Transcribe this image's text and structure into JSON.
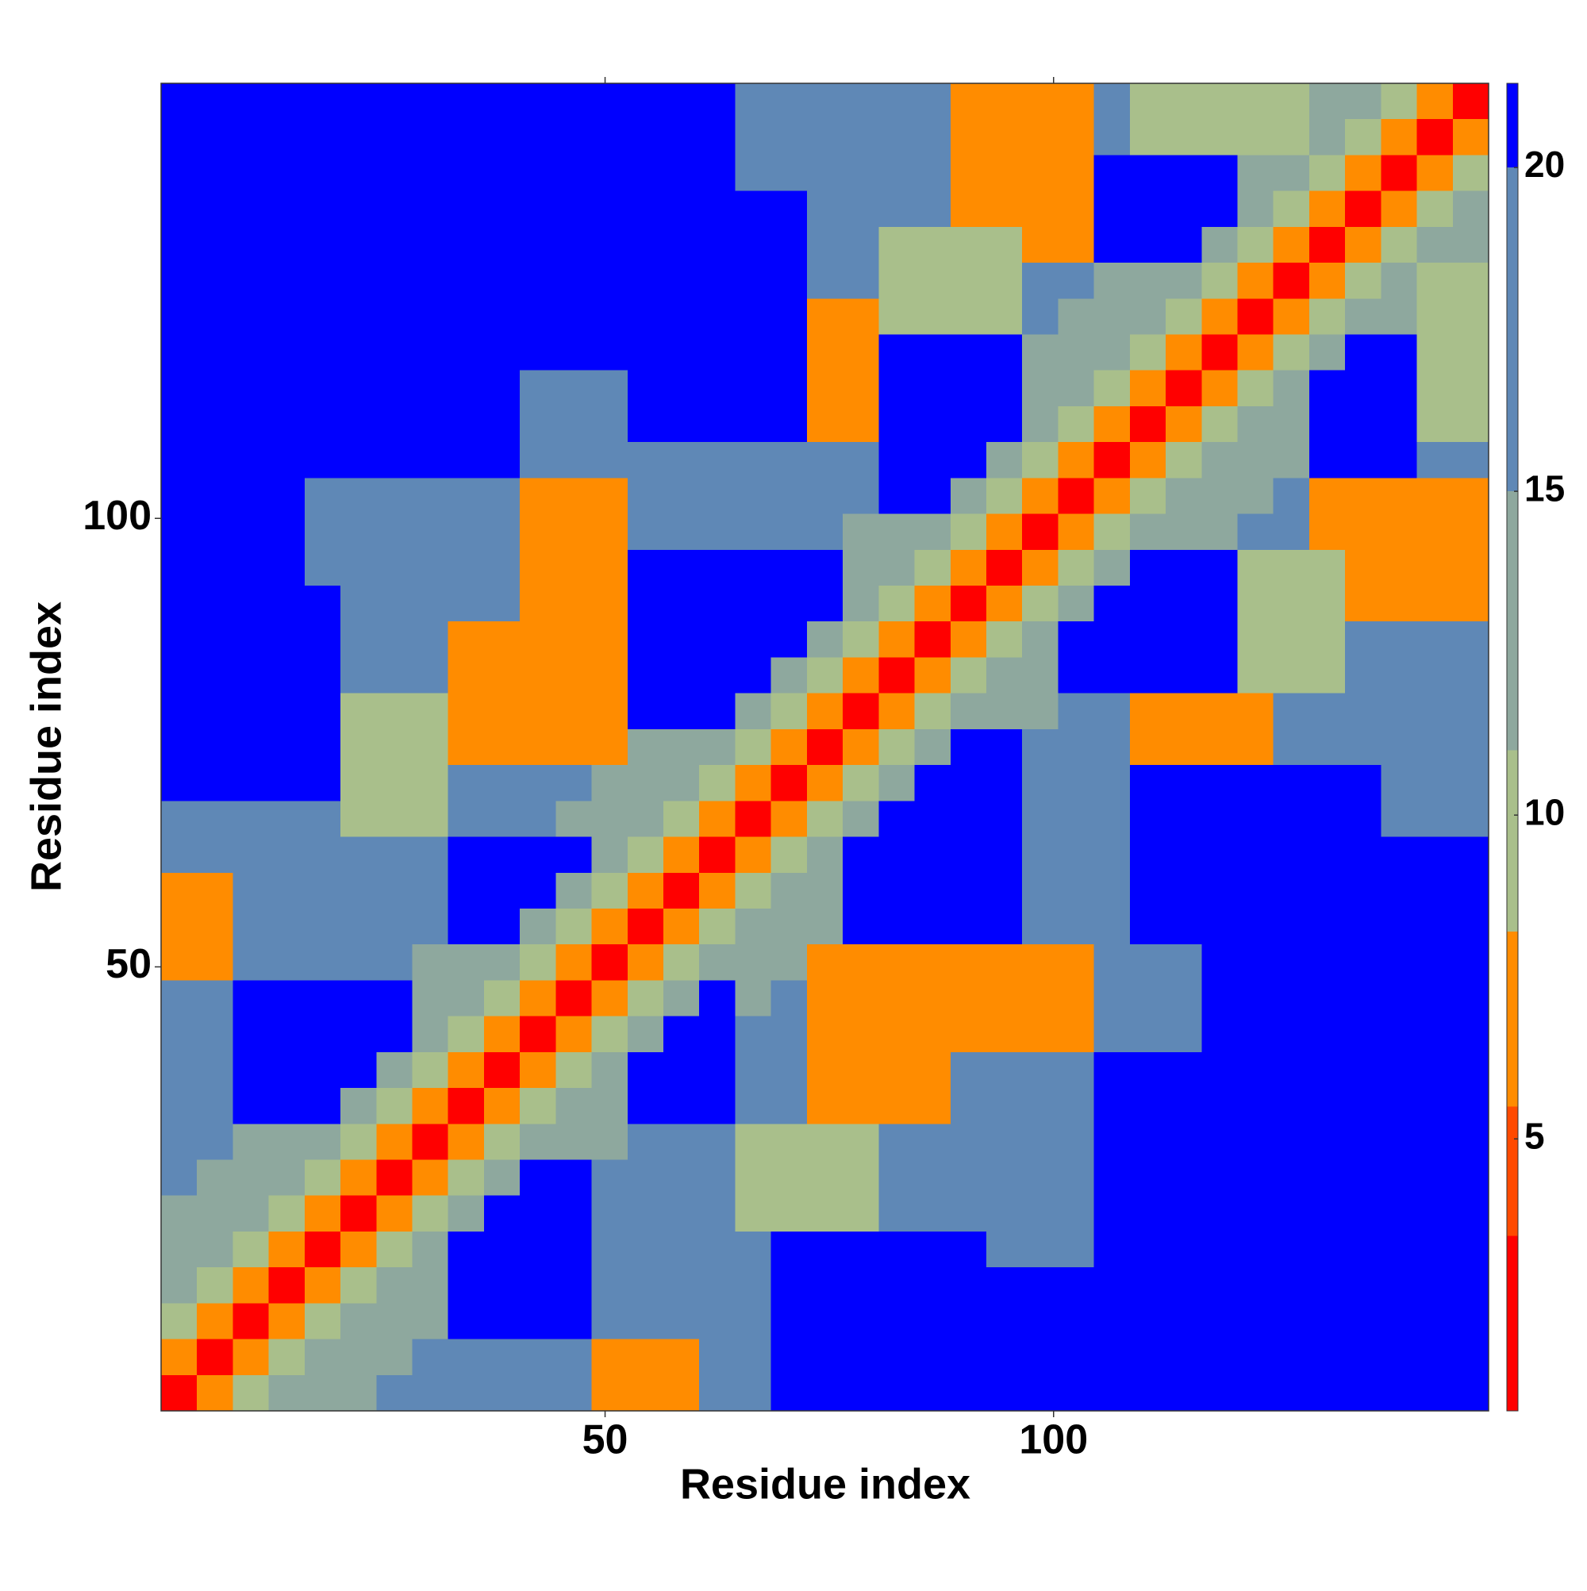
{
  "chart_data": {
    "type": "heatmap",
    "xlabel": "Residue index",
    "ylabel": "Residue index",
    "xbins": [
      0.5,
      4.5,
      8.5,
      12.5,
      16.5,
      20.5,
      24.5,
      28.5,
      32.5,
      36.5,
      40.5,
      44.5,
      48.5,
      52.5,
      56.5,
      60.5,
      64.5,
      68.5,
      72.5,
      76.5,
      80.5,
      84.5,
      88.5,
      92.5,
      96.5,
      100.5,
      104.5,
      108.5,
      112.5,
      116.5,
      120.5,
      124.5,
      128.5,
      132.5,
      136.5,
      140.5,
      144.5,
      148.5
    ],
    "ybins": [
      0.5,
      4.5,
      8.5,
      12.5,
      16.5,
      20.5,
      24.5,
      28.5,
      32.5,
      36.5,
      40.5,
      44.5,
      48.5,
      52.5,
      56.5,
      60.5,
      64.5,
      68.5,
      72.5,
      76.5,
      80.5,
      84.5,
      88.5,
      92.5,
      96.5,
      100.5,
      104.5,
      108.5,
      112.5,
      116.5,
      120.5,
      124.5,
      128.5,
      132.5,
      136.5,
      140.5,
      144.5,
      148.5
    ],
    "xlim": [
      0.5,
      148.5
    ],
    "ylim": [
      0.5,
      148.5
    ],
    "xticks": [
      50,
      100
    ],
    "yticks": [
      50,
      100
    ],
    "values": [
      [
        3,
        7,
        10,
        13,
        14,
        14,
        17,
        17,
        17,
        17,
        17,
        17,
        7,
        7,
        7,
        17,
        17,
        21,
        21,
        21,
        21,
        21,
        21,
        21,
        21,
        21,
        21,
        21,
        21,
        21,
        21,
        21,
        21,
        21,
        21,
        21,
        21
      ],
      [
        7,
        3,
        7,
        10,
        13,
        14,
        14,
        17,
        17,
        17,
        17,
        17,
        7,
        7,
        7,
        17,
        17,
        21,
        21,
        21,
        21,
        21,
        21,
        21,
        21,
        21,
        21,
        21,
        21,
        21,
        21,
        21,
        21,
        21,
        21,
        21,
        21
      ],
      [
        10,
        7,
        3,
        7,
        10,
        13,
        14,
        14,
        21,
        21,
        21,
        21,
        17,
        17,
        17,
        17,
        17,
        21,
        21,
        21,
        21,
        21,
        21,
        21,
        21,
        21,
        21,
        21,
        21,
        21,
        21,
        21,
        21,
        21,
        21,
        21,
        21
      ],
      [
        13,
        10,
        7,
        3,
        7,
        10,
        13,
        14,
        21,
        21,
        21,
        21,
        17,
        17,
        17,
        17,
        17,
        21,
        21,
        21,
        21,
        21,
        21,
        21,
        21,
        21,
        21,
        21,
        21,
        21,
        21,
        21,
        21,
        21,
        21,
        21,
        21
      ],
      [
        14,
        13,
        10,
        7,
        3,
        7,
        10,
        13,
        21,
        21,
        21,
        21,
        17,
        17,
        17,
        17,
        17,
        21,
        21,
        21,
        21,
        21,
        21,
        17,
        17,
        17,
        21,
        21,
        21,
        21,
        21,
        21,
        21,
        21,
        21,
        21,
        21
      ],
      [
        14,
        14,
        13,
        10,
        7,
        3,
        7,
        10,
        13,
        21,
        21,
        21,
        17,
        17,
        17,
        17,
        9,
        9,
        9,
        9,
        17,
        17,
        17,
        17,
        17,
        17,
        21,
        21,
        21,
        21,
        21,
        21,
        21,
        21,
        21,
        21,
        21
      ],
      [
        17,
        14,
        14,
        13,
        10,
        7,
        3,
        7,
        10,
        13,
        21,
        21,
        17,
        17,
        17,
        17,
        9,
        9,
        9,
        9,
        17,
        17,
        17,
        17,
        17,
        17,
        21,
        21,
        21,
        21,
        21,
        21,
        21,
        21,
        21,
        21,
        21
      ],
      [
        17,
        17,
        14,
        14,
        13,
        10,
        7,
        3,
        7,
        10,
        13,
        14,
        14,
        17,
        17,
        17,
        9,
        9,
        9,
        9,
        17,
        17,
        17,
        17,
        17,
        17,
        21,
        21,
        21,
        21,
        21,
        21,
        21,
        21,
        21,
        21,
        21
      ],
      [
        17,
        17,
        21,
        21,
        21,
        13,
        10,
        7,
        3,
        7,
        10,
        13,
        14,
        21,
        21,
        21,
        17,
        17,
        7,
        7,
        7,
        7,
        17,
        17,
        17,
        17,
        21,
        21,
        21,
        21,
        21,
        21,
        21,
        21,
        21,
        21,
        21
      ],
      [
        17,
        17,
        21,
        21,
        21,
        21,
        13,
        10,
        7,
        3,
        7,
        10,
        13,
        21,
        21,
        21,
        17,
        17,
        7,
        7,
        7,
        7,
        17,
        17,
        17,
        17,
        21,
        21,
        21,
        21,
        21,
        21,
        21,
        21,
        21,
        21,
        21
      ],
      [
        17,
        17,
        21,
        21,
        21,
        21,
        21,
        13,
        10,
        7,
        3,
        7,
        10,
        13,
        21,
        21,
        17,
        17,
        7,
        7,
        7,
        7,
        7,
        7,
        7,
        7,
        17,
        17,
        17,
        21,
        21,
        21,
        21,
        21,
        21,
        21,
        21
      ],
      [
        17,
        17,
        21,
        21,
        21,
        21,
        21,
        14,
        13,
        10,
        7,
        3,
        7,
        10,
        13,
        21,
        14,
        17,
        7,
        7,
        7,
        7,
        7,
        7,
        7,
        7,
        17,
        17,
        17,
        21,
        21,
        21,
        21,
        21,
        21,
        21,
        21
      ],
      [
        7,
        7,
        17,
        17,
        17,
        17,
        17,
        14,
        14,
        13,
        10,
        7,
        3,
        7,
        10,
        13,
        14,
        14,
        7,
        7,
        7,
        7,
        7,
        7,
        7,
        7,
        17,
        17,
        17,
        21,
        21,
        21,
        21,
        21,
        21,
        21,
        21
      ],
      [
        7,
        7,
        17,
        17,
        17,
        17,
        17,
        17,
        21,
        21,
        13,
        10,
        7,
        3,
        7,
        10,
        13,
        14,
        14,
        21,
        21,
        21,
        21,
        21,
        17,
        17,
        17,
        21,
        21,
        21,
        21,
        21,
        21,
        21,
        21,
        21,
        21
      ],
      [
        7,
        7,
        17,
        17,
        17,
        17,
        17,
        17,
        21,
        21,
        21,
        13,
        10,
        7,
        3,
        7,
        10,
        13,
        14,
        21,
        21,
        21,
        21,
        21,
        17,
        17,
        17,
        21,
        21,
        21,
        21,
        21,
        21,
        21,
        21,
        21,
        21
      ],
      [
        17,
        17,
        17,
        17,
        17,
        17,
        17,
        17,
        21,
        21,
        21,
        21,
        13,
        10,
        7,
        3,
        7,
        10,
        13,
        21,
        21,
        21,
        21,
        21,
        17,
        17,
        17,
        21,
        21,
        21,
        21,
        21,
        21,
        21,
        21,
        21,
        21
      ],
      [
        17,
        17,
        17,
        17,
        17,
        9,
        9,
        9,
        17,
        17,
        17,
        14,
        14,
        13,
        10,
        7,
        3,
        7,
        10,
        13,
        21,
        21,
        21,
        21,
        17,
        17,
        17,
        21,
        21,
        21,
        21,
        21,
        21,
        21,
        17,
        17,
        17
      ],
      [
        21,
        21,
        21,
        21,
        21,
        9,
        9,
        9,
        17,
        17,
        17,
        17,
        14,
        14,
        13,
        10,
        7,
        3,
        7,
        10,
        13,
        21,
        21,
        21,
        17,
        17,
        17,
        21,
        21,
        21,
        21,
        21,
        21,
        21,
        17,
        17,
        17
      ],
      [
        21,
        21,
        21,
        21,
        21,
        9,
        9,
        9,
        7,
        7,
        7,
        7,
        7,
        14,
        14,
        13,
        10,
        7,
        3,
        7,
        10,
        13,
        21,
        21,
        17,
        17,
        17,
        7,
        7,
        7,
        7,
        17,
        17,
        17,
        17,
        17,
        17
      ],
      [
        21,
        21,
        21,
        21,
        21,
        9,
        9,
        9,
        7,
        7,
        7,
        7,
        7,
        21,
        21,
        21,
        13,
        10,
        7,
        3,
        7,
        10,
        13,
        14,
        14,
        17,
        17,
        7,
        7,
        7,
        7,
        17,
        17,
        17,
        17,
        17,
        17
      ],
      [
        21,
        21,
        21,
        21,
        21,
        17,
        17,
        17,
        7,
        7,
        7,
        7,
        7,
        21,
        21,
        21,
        21,
        13,
        10,
        7,
        3,
        7,
        10,
        13,
        14,
        21,
        21,
        21,
        21,
        21,
        9,
        9,
        9,
        17,
        17,
        17,
        17
      ],
      [
        21,
        21,
        21,
        21,
        21,
        17,
        17,
        17,
        7,
        7,
        7,
        7,
        7,
        21,
        21,
        21,
        21,
        21,
        13,
        10,
        7,
        3,
        7,
        10,
        13,
        21,
        21,
        21,
        21,
        21,
        9,
        9,
        9,
        17,
        17,
        17,
        17
      ],
      [
        21,
        21,
        21,
        21,
        21,
        17,
        17,
        17,
        17,
        17,
        7,
        7,
        7,
        21,
        21,
        21,
        21,
        21,
        21,
        13,
        10,
        7,
        3,
        7,
        10,
        13,
        21,
        21,
        21,
        21,
        9,
        9,
        9,
        7,
        7,
        7,
        7
      ],
      [
        21,
        21,
        21,
        21,
        17,
        17,
        17,
        17,
        17,
        17,
        7,
        7,
        7,
        21,
        21,
        21,
        21,
        21,
        21,
        14,
        13,
        10,
        7,
        3,
        7,
        10,
        13,
        21,
        21,
        21,
        9,
        9,
        9,
        7,
        7,
        7,
        7
      ],
      [
        21,
        21,
        21,
        21,
        17,
        17,
        17,
        17,
        17,
        17,
        7,
        7,
        7,
        17,
        17,
        17,
        17,
        17,
        17,
        14,
        14,
        13,
        10,
        7,
        3,
        7,
        10,
        13,
        14,
        14,
        17,
        17,
        7,
        7,
        7,
        7,
        7
      ],
      [
        21,
        21,
        21,
        21,
        17,
        17,
        17,
        17,
        17,
        17,
        7,
        7,
        7,
        17,
        17,
        17,
        17,
        17,
        17,
        17,
        21,
        21,
        13,
        10,
        7,
        3,
        7,
        10,
        13,
        14,
        14,
        17,
        7,
        7,
        7,
        7,
        7
      ],
      [
        21,
        21,
        21,
        21,
        21,
        21,
        21,
        21,
        21,
        21,
        17,
        17,
        17,
        17,
        17,
        17,
        17,
        17,
        17,
        17,
        21,
        21,
        21,
        13,
        10,
        7,
        3,
        7,
        10,
        13,
        14,
        14,
        21,
        21,
        21,
        17,
        17
      ],
      [
        21,
        21,
        21,
        21,
        21,
        21,
        21,
        21,
        21,
        21,
        17,
        17,
        17,
        21,
        21,
        21,
        21,
        21,
        7,
        7,
        21,
        21,
        21,
        21,
        13,
        10,
        7,
        3,
        7,
        10,
        13,
        14,
        21,
        21,
        21,
        10,
        10
      ],
      [
        21,
        21,
        21,
        21,
        21,
        21,
        21,
        21,
        21,
        21,
        17,
        17,
        17,
        21,
        21,
        21,
        21,
        21,
        7,
        7,
        21,
        21,
        21,
        21,
        14,
        13,
        10,
        7,
        3,
        7,
        10,
        13,
        21,
        21,
        21,
        10,
        10
      ],
      [
        21,
        21,
        21,
        21,
        21,
        21,
        21,
        21,
        21,
        21,
        21,
        21,
        21,
        21,
        21,
        21,
        21,
        21,
        7,
        7,
        21,
        21,
        21,
        21,
        14,
        14,
        13,
        10,
        7,
        3,
        7,
        10,
        13,
        21,
        21,
        10,
        10
      ],
      [
        21,
        21,
        21,
        21,
        21,
        21,
        21,
        21,
        21,
        21,
        21,
        21,
        21,
        21,
        21,
        21,
        21,
        21,
        7,
        7,
        9,
        9,
        9,
        9,
        17,
        14,
        14,
        13,
        10,
        7,
        3,
        7,
        10,
        13,
        14,
        10,
        10
      ],
      [
        21,
        21,
        21,
        21,
        21,
        21,
        21,
        21,
        21,
        21,
        21,
        21,
        21,
        21,
        21,
        21,
        21,
        21,
        17,
        17,
        9,
        9,
        9,
        9,
        17,
        17,
        14,
        14,
        13,
        10,
        7,
        3,
        7,
        10,
        13,
        10,
        10
      ],
      [
        21,
        21,
        21,
        21,
        21,
        21,
        21,
        21,
        21,
        21,
        21,
        21,
        21,
        21,
        21,
        21,
        21,
        21,
        17,
        17,
        9,
        9,
        9,
        9,
        7,
        7,
        21,
        21,
        21,
        13,
        10,
        7,
        3,
        7,
        10,
        13,
        14
      ],
      [
        21,
        21,
        21,
        21,
        21,
        21,
        21,
        21,
        21,
        21,
        21,
        21,
        21,
        21,
        21,
        21,
        21,
        21,
        17,
        17,
        17,
        17,
        7,
        7,
        7,
        7,
        21,
        21,
        21,
        21,
        13,
        10,
        7,
        3,
        7,
        10,
        13
      ],
      [
        21,
        21,
        21,
        21,
        21,
        21,
        21,
        21,
        21,
        21,
        21,
        21,
        21,
        21,
        21,
        21,
        17,
        17,
        17,
        17,
        17,
        17,
        7,
        7,
        7,
        7,
        21,
        21,
        21,
        21,
        14,
        13,
        10,
        7,
        3,
        7,
        10
      ],
      [
        21,
        21,
        21,
        21,
        21,
        21,
        21,
        21,
        21,
        21,
        21,
        21,
        21,
        21,
        21,
        21,
        17,
        17,
        17,
        17,
        17,
        17,
        7,
        7,
        7,
        7,
        17,
        10,
        10,
        10,
        10,
        10,
        13,
        10,
        7,
        3,
        7
      ],
      [
        21,
        21,
        21,
        21,
        21,
        21,
        21,
        21,
        21,
        21,
        21,
        21,
        21,
        21,
        21,
        21,
        17,
        17,
        17,
        17,
        17,
        17,
        7,
        7,
        7,
        7,
        17,
        10,
        10,
        10,
        10,
        10,
        14,
        13,
        10,
        7,
        3
      ]
    ],
    "colorbar": {
      "levels": [
        0.8,
        3.5,
        5.5,
        8.2,
        11,
        15,
        20,
        21.3
      ],
      "colors": [
        "#ff0000",
        "#ff4a00",
        "#ff8c00",
        "#a9bf8b",
        "#8ea89e",
        "#5f88b6",
        "#0000ff"
      ],
      "ticks": [
        5,
        10,
        15,
        20
      ]
    }
  }
}
